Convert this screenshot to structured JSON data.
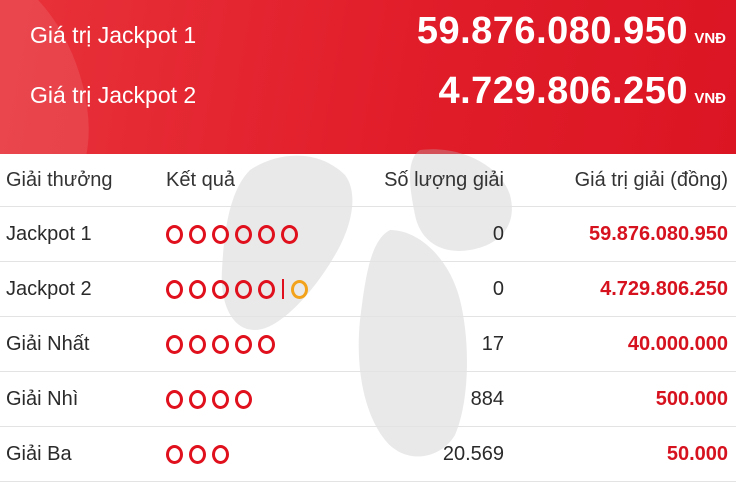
{
  "jackpots": [
    {
      "label": "Giá trị Jackpot 1",
      "value": "59.876.080.950",
      "unit": "VNĐ"
    },
    {
      "label": "Giá trị Jackpot 2",
      "value": "4.729.806.250",
      "unit": "VNĐ"
    }
  ],
  "table": {
    "headers": {
      "prize": "Giải thưởng",
      "result": "Kết quả",
      "count": "Số lượng giải",
      "value": "Giá trị giải (đồng)"
    },
    "rows": [
      {
        "prize": "Jackpot 1",
        "balls": 6,
        "bonus_ball": false,
        "count": "0",
        "value": "59.876.080.950"
      },
      {
        "prize": "Jackpot 2",
        "balls": 5,
        "bonus_ball": true,
        "count": "0",
        "value": "4.729.806.250"
      },
      {
        "prize": "Giải Nhất",
        "balls": 5,
        "bonus_ball": false,
        "count": "17",
        "value": "40.000.000"
      },
      {
        "prize": "Giải Nhì",
        "balls": 4,
        "bonus_ball": false,
        "count": "884",
        "value": "500.000"
      },
      {
        "prize": "Giải Ba",
        "balls": 3,
        "bonus_ball": false,
        "count": "20.569",
        "value": "50.000"
      }
    ]
  },
  "colors": {
    "header_red": "#e11d2a",
    "value_red": "#d7121f",
    "ball_red": "#e0101d",
    "bonus_orange": "#f2a31b"
  }
}
